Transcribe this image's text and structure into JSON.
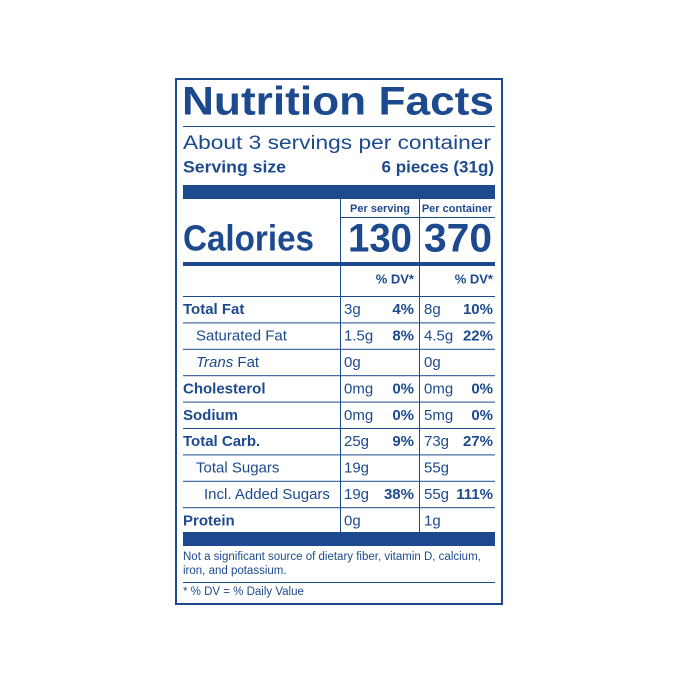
{
  "title": "Nutrition Facts",
  "servings": "About 3 servings per container",
  "serving_size": {
    "label": "Serving size",
    "value": "6 pieces (31g)"
  },
  "calories": {
    "label": "Calories",
    "per_serving_header": "Per serving",
    "per_container_header": "Per container",
    "per_serving": "130",
    "per_container": "370"
  },
  "dv_headers": [
    "% DV*",
    "% DV*"
  ],
  "rows": [
    {
      "name": "Total Fat",
      "per_serving": {
        "amount": "3g",
        "dv": "4%"
      },
      "per_container": {
        "amount": "8g",
        "dv": "10%"
      },
      "sub": [
        {
          "name": "Saturated Fat",
          "per_serving": {
            "amount": "1.5g",
            "dv": "8%"
          },
          "per_container": {
            "amount": "4.5g",
            "dv": "22%"
          }
        },
        {
          "name_italic": "Trans",
          "name": " Fat",
          "per_serving": {
            "amount": "0g"
          },
          "per_container": {
            "amount": "0g"
          }
        }
      ]
    },
    {
      "name": "Cholesterol",
      "per_serving": {
        "amount": "0mg",
        "dv": "0%"
      },
      "per_container": {
        "amount": "0mg",
        "dv": "0%"
      }
    },
    {
      "name": "Sodium",
      "per_serving": {
        "amount": "0mg",
        "dv": "0%"
      },
      "per_container": {
        "amount": "5mg",
        "dv": "0%"
      }
    },
    {
      "name": "Total Carb.",
      "per_serving": {
        "amount": "25g",
        "dv": "9%"
      },
      "per_container": {
        "amount": "73g",
        "dv": "27%"
      },
      "sub": [
        {
          "name": "Total Sugars",
          "per_serving": {
            "amount": "19g"
          },
          "per_container": {
            "amount": "55g"
          },
          "sub": [
            {
              "name": "Incl. Added Sugars",
              "per_serving": {
                "amount": "19g",
                "dv": "38%"
              },
              "per_container": {
                "amount": "55g",
                "dv": "111%"
              }
            }
          ]
        }
      ]
    },
    {
      "name": "Protein",
      "per_serving": {
        "amount": "0g"
      },
      "per_container": {
        "amount": "1g"
      }
    }
  ],
  "footnote": [
    "Not a significant source of dietary fiber, vitamin D, calcium,",
    "iron, and potassium."
  ],
  "dv_note": "* % DV = % Daily Value"
}
